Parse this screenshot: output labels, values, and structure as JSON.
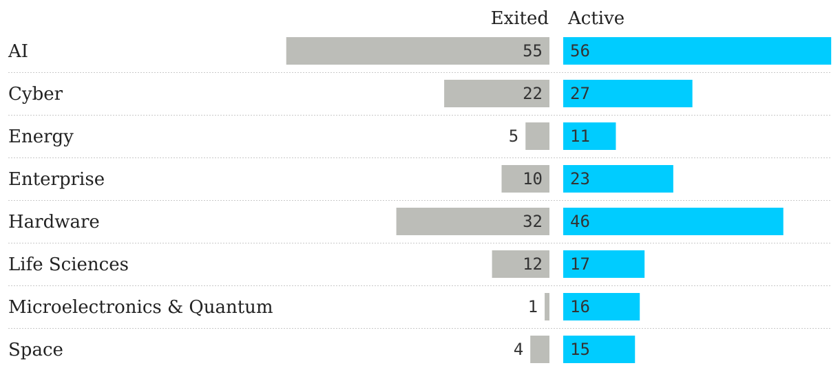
{
  "chart_data": {
    "type": "bar",
    "layout": "diverging-paired",
    "categories": [
      "AI",
      "Cyber",
      "Energy",
      "Enterprise",
      "Hardware",
      "Life Sciences",
      "Microelectronics & Quantum",
      "Space"
    ],
    "series": [
      {
        "name": "Exited",
        "values": [
          55,
          22,
          5,
          10,
          32,
          12,
          1,
          4
        ],
        "color": "#bcbdb8"
      },
      {
        "name": "Active",
        "values": [
          56,
          27,
          11,
          23,
          46,
          17,
          16,
          15
        ],
        "color": "#00ccff"
      }
    ],
    "title": "",
    "xlabel": "",
    "ylabel": "",
    "grid": false,
    "legend": "column headers above bars"
  }
}
